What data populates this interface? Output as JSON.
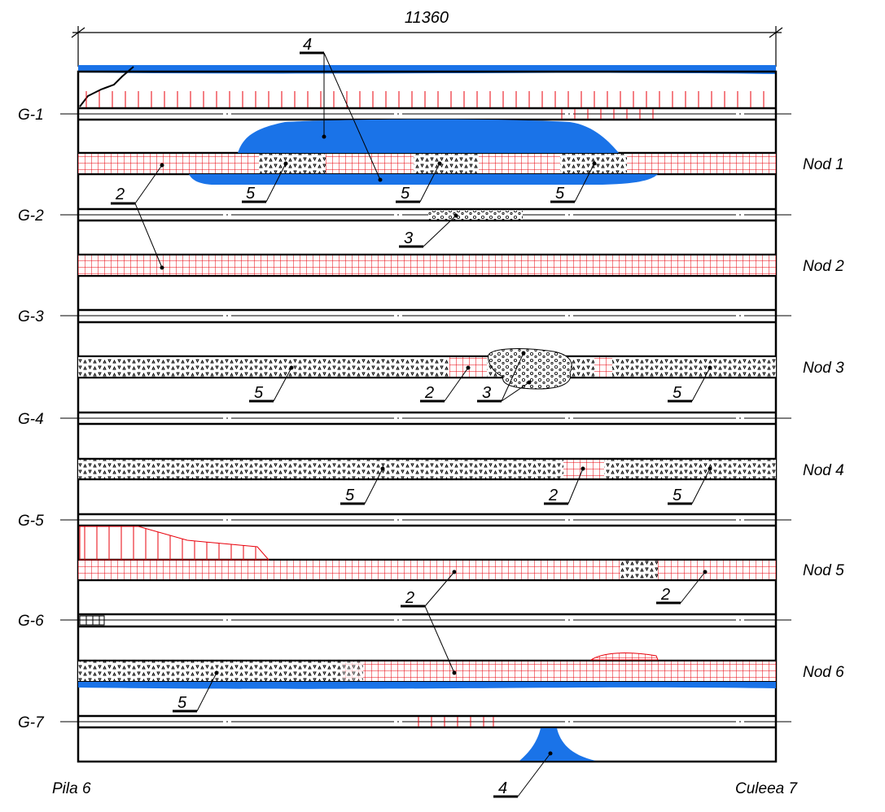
{
  "title": "11360",
  "girders": [
    "G-1",
    "G-2",
    "G-3",
    "G-4",
    "G-5",
    "G-6",
    "G-7"
  ],
  "nodes": [
    "Nod 1",
    "Nod 2",
    "Nod 3",
    "Nod 4",
    "Nod 5",
    "Nod 6"
  ],
  "callouts": {
    "c4_top": "4",
    "c2_a": "2",
    "c5_a": "5",
    "c5_b": "5",
    "c5_c": "5",
    "c3_a": "3",
    "c5_d": "5",
    "c2_b": "2",
    "c3_b": "3",
    "c5_e": "5",
    "c5_f": "5",
    "c2_c": "2",
    "c5_g": "5",
    "c2_d": "2",
    "c2_e": "2",
    "c5_h": "5",
    "c4_bottom": "4"
  },
  "footer": {
    "left": "Pila 6",
    "right": "Culeea  7"
  },
  "colors": {
    "blue": "#1a73e8",
    "red": "#e8000b",
    "black": "#000000"
  }
}
